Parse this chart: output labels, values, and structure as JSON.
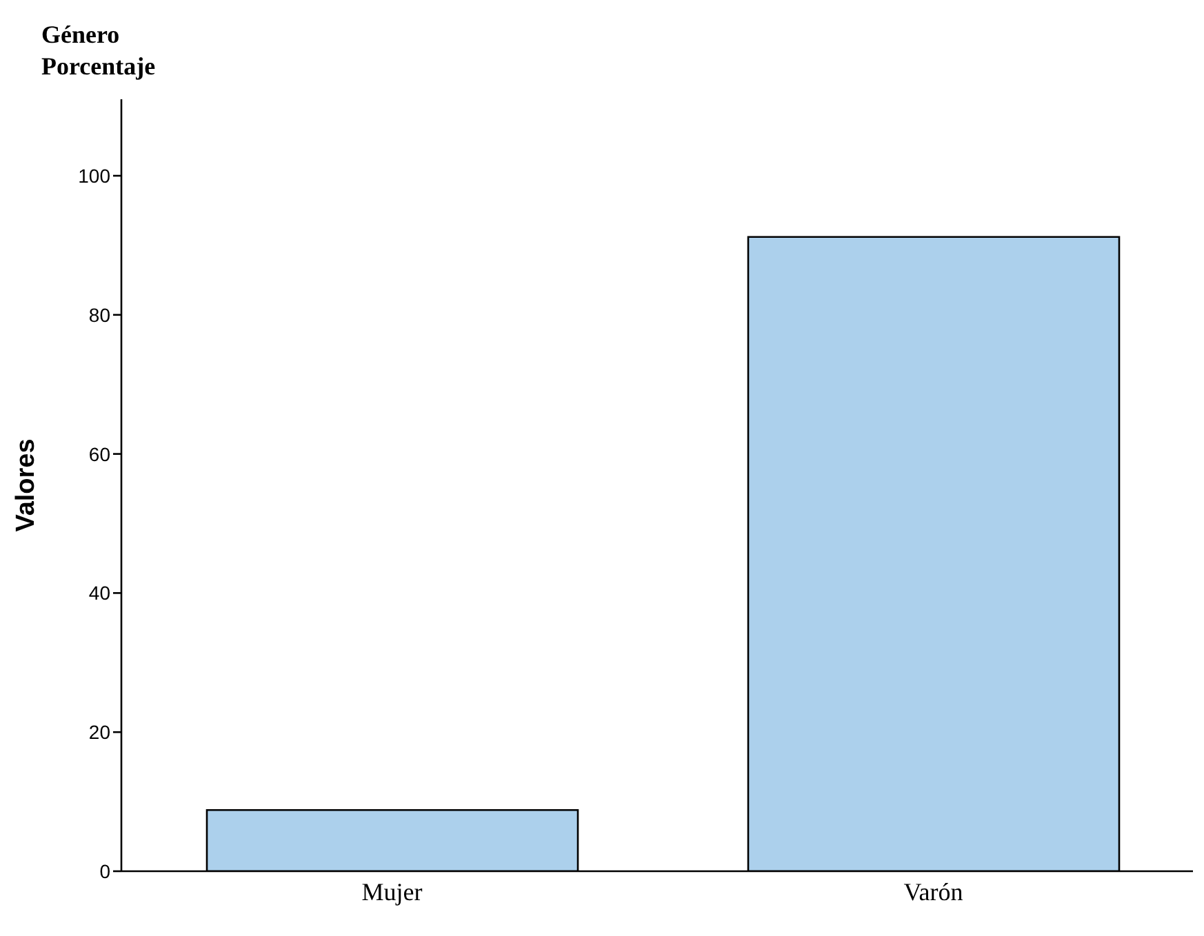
{
  "chart_data": {
    "type": "bar",
    "title": "Género",
    "subtitle": "Porcentaje",
    "ylabel": "Valores",
    "categories": [
      "Mujer",
      "Varón"
    ],
    "values": [
      8.8,
      91.2
    ],
    "color": "#acd0ec",
    "ylim": [
      0,
      111
    ],
    "yticks": [
      0,
      20,
      40,
      60,
      80,
      100
    ],
    "grid": false,
    "legend": false
  }
}
